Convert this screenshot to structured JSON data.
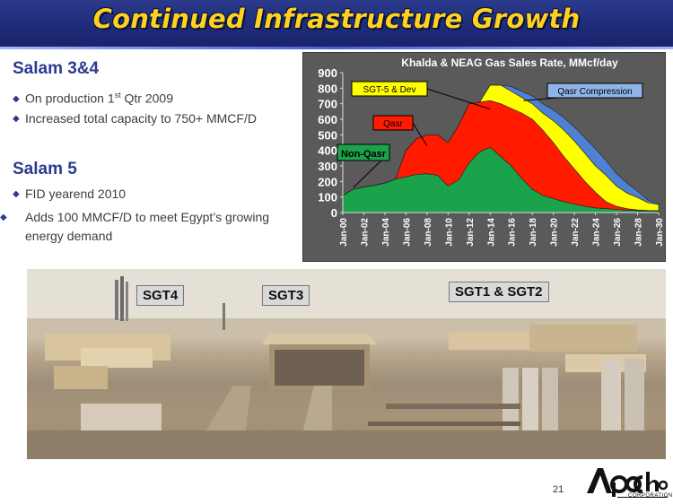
{
  "slide": {
    "title": "Continued Infrastructure Growth",
    "page_number": "21"
  },
  "sections": [
    {
      "heading": "Salam 3&4",
      "bullets": [
        {
          "pre": "On production 1",
          "sup": "st",
          "post": " Qtr 2009"
        },
        {
          "pre": "Increased total capacity to 750+ MMCF/D",
          "sup": "",
          "post": ""
        }
      ]
    },
    {
      "heading": "Salam 5",
      "bullets": [
        {
          "pre": "FID yearend 2010",
          "sup": "",
          "post": ""
        },
        {
          "pre": "Adds 100 MMCF/D to meet Egypt’s growing energy demand",
          "sup": "",
          "post": ""
        }
      ]
    }
  ],
  "photo": {
    "labels": [
      "SGT4",
      "SGT3",
      "SGT1  & SGT2"
    ]
  },
  "logo": {
    "name": "Apache",
    "subtitle": "CORPORATION"
  },
  "colors": {
    "title_bar": "#1e2b78",
    "title_text": "#ffd21f",
    "heading": "#2a3b8f",
    "non_qasr": "#1aa34a",
    "qasr": "#ff1a00",
    "sgt5_dev": "#ffff00",
    "qasr_compression": "#4f81d2",
    "chart_bg": "#5a5a5a"
  },
  "chart_data": {
    "type": "area",
    "stacked": true,
    "title": "Khalda & NEAG Gas Sales Rate, MMcf/day",
    "xlabel": "",
    "ylabel": "",
    "ylim": [
      0,
      900
    ],
    "yticks": [
      0,
      100,
      200,
      300,
      400,
      500,
      600,
      700,
      800,
      900
    ],
    "xticks": [
      "Jan-00",
      "Jan-02",
      "Jan-04",
      "Jan-06",
      "Jan-08",
      "Jan-10",
      "Jan-12",
      "Jan-14",
      "Jan-16",
      "Jan-18",
      "Jan-20",
      "Jan-22",
      "Jan-24",
      "Jan-26",
      "Jan-28",
      "Jan-30"
    ],
    "grid": false,
    "x": [
      2000,
      2001,
      2002,
      2003,
      2004,
      2005,
      2006,
      2007,
      2008,
      2009,
      2010,
      2011,
      2012,
      2013,
      2014,
      2015,
      2016,
      2017,
      2018,
      2019,
      2020,
      2021,
      2022,
      2023,
      2024,
      2025,
      2026,
      2027,
      2028,
      2029,
      2030
    ],
    "series": [
      {
        "name": "Non-Qasr",
        "values": [
          110,
          150,
          165,
          175,
          190,
          215,
          230,
          245,
          250,
          240,
          170,
          210,
          320,
          390,
          420,
          360,
          300,
          220,
          150,
          110,
          90,
          70,
          55,
          40,
          30,
          25,
          20,
          15,
          12,
          10,
          10
        ]
      },
      {
        "name": "Qasr",
        "values": [
          0,
          0,
          0,
          0,
          0,
          0,
          170,
          230,
          250,
          260,
          280,
          350,
          380,
          320,
          300,
          340,
          370,
          420,
          450,
          420,
          360,
          290,
          225,
          160,
          100,
          45,
          20,
          10,
          5,
          3,
          2
        ]
      },
      {
        "name": "SGT-5 & Dev",
        "values": [
          0,
          0,
          0,
          0,
          0,
          0,
          0,
          0,
          0,
          0,
          0,
          0,
          0,
          0,
          100,
          120,
          110,
          100,
          100,
          110,
          140,
          170,
          180,
          180,
          170,
          170,
          130,
          100,
          80,
          50,
          40
        ]
      },
      {
        "name": "Qasr Compression",
        "values": [
          0,
          0,
          0,
          0,
          0,
          0,
          0,
          0,
          0,
          0,
          0,
          0,
          0,
          0,
          0,
          0,
          30,
          40,
          50,
          60,
          70,
          80,
          90,
          100,
          110,
          95,
          80,
          65,
          40,
          15,
          5
        ]
      }
    ],
    "annotations": [
      {
        "text": "SGT-5 & Dev",
        "series": "SGT-5 & Dev"
      },
      {
        "text": "Qasr Compression",
        "series": "Qasr Compression"
      },
      {
        "text": "Qasr",
        "series": "Qasr"
      },
      {
        "text": "Non-Qasr",
        "series": "Non-Qasr"
      }
    ]
  }
}
